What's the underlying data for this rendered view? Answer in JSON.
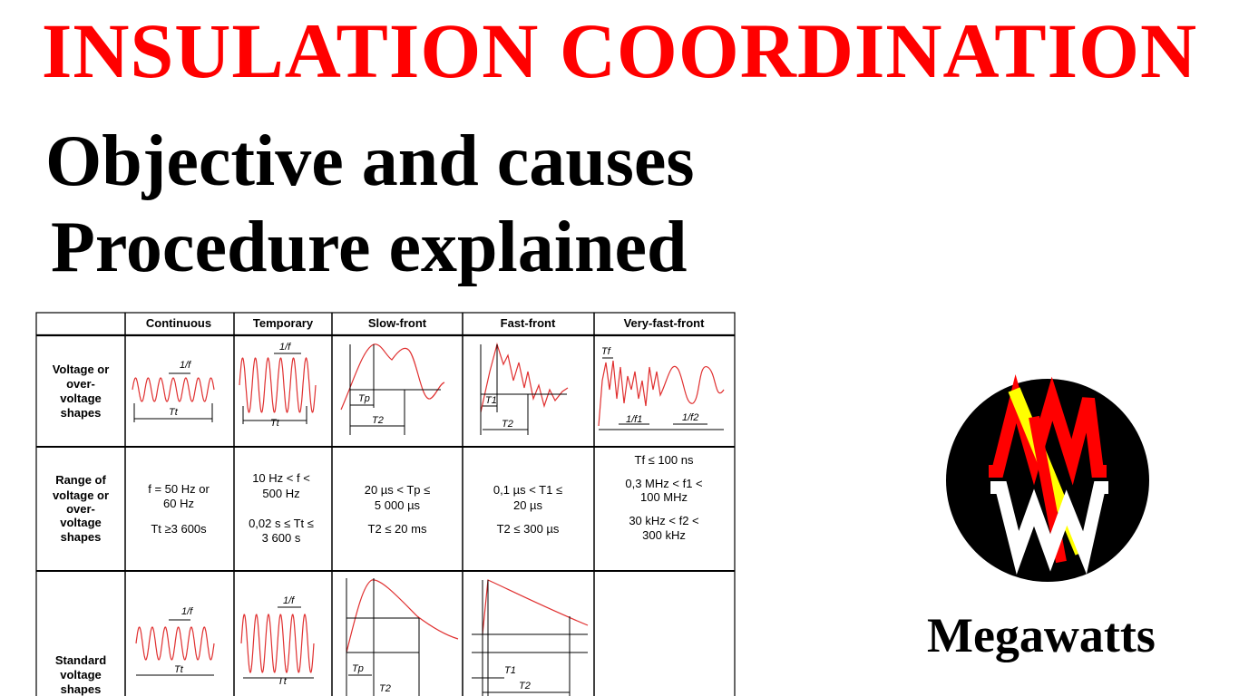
{
  "title": "INSULATION COORDINATION",
  "subtitle_line1": "Objective and causes",
  "subtitle_line2": "Procedure explained",
  "brand": "Megawatts",
  "colors": {
    "title": "#ff0000",
    "logo_bg": "#000000",
    "logo_red": "#ff0000",
    "logo_yellow": "#ffff00",
    "logo_white": "#ffffff",
    "curve": "#e03030"
  },
  "table": {
    "columns": [
      "Continuous",
      "Temporary",
      "Slow-front",
      "Fast-front",
      "Very-fast-front"
    ],
    "rows": {
      "shapes": [
        "Voltage or",
        "over-",
        "voltage",
        "shapes"
      ],
      "range": [
        "Range of",
        "voltage or",
        "over-",
        "voltage",
        "shapes"
      ],
      "standard": [
        "Standard",
        "voltage",
        "shapes"
      ]
    },
    "range_cells": {
      "continuous": [
        "f = 50 Hz or",
        "60 Hz",
        "Tt ≥3 600s"
      ],
      "temporary": [
        "10 Hz < f <",
        "500 Hz",
        "0,02 s ≤ Tt ≤",
        "3 600 s"
      ],
      "slow": [
        "20 µs < Tp ≤",
        "5 000 µs",
        "T2 ≤ 20 ms"
      ],
      "fast": [
        "0,1 µs < T1 ≤",
        "20 µs",
        "T2 ≤ 300 µs"
      ],
      "veryfast": [
        "Tf ≤ 100 ns",
        "0,3 MHz < f1 <",
        "100 MHz",
        "30 kHz < f2 <",
        "300 kHz"
      ]
    },
    "labels": {
      "one_f": "1/f",
      "tt": "Tt",
      "tp": "Tp",
      "t1": "T1",
      "t2": "T2",
      "tf": "Tf",
      "one_f1": "1/f1",
      "one_f2": "1/f2"
    }
  }
}
